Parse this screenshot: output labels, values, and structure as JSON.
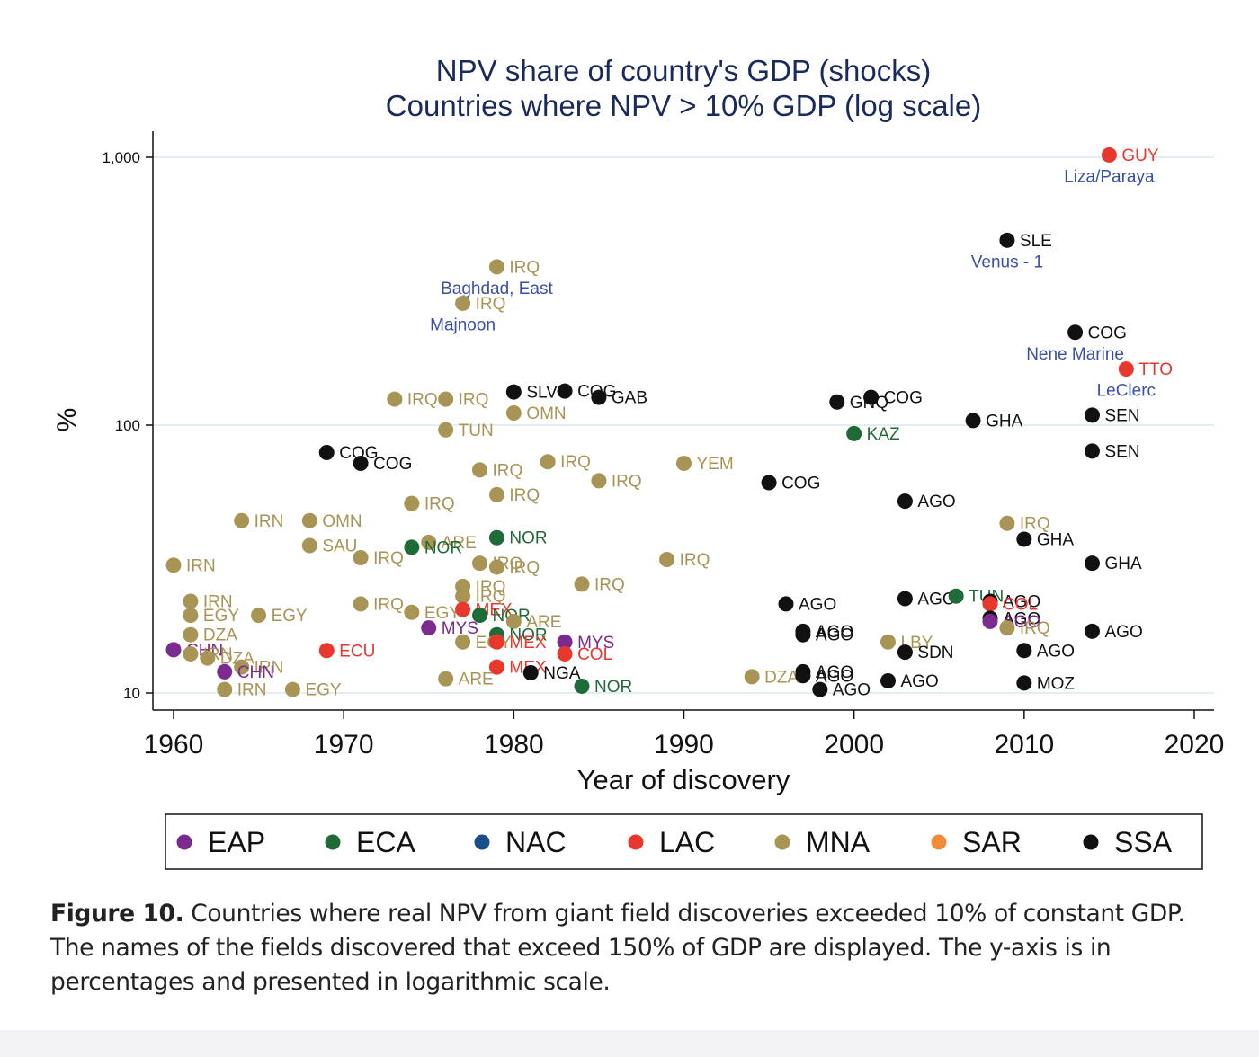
{
  "chart_data": {
    "type": "scatter",
    "title": "NPV share of country's GDP (shocks)",
    "subtitle": "Countries where NPV > 10% GDP (log scale)",
    "xlabel": "Year of discovery",
    "ylabel": "%",
    "xlim": [
      1959,
      2021
    ],
    "ylim": [
      9.1,
      1180
    ],
    "y_scale": "log",
    "x_ticks": [
      1960,
      1970,
      1980,
      1990,
      2000,
      2010,
      2020
    ],
    "y_ticks": [
      {
        "value": 10,
        "label": "10"
      },
      {
        "value": 100,
        "label": "100"
      },
      {
        "value": 1000,
        "label": "1,000"
      }
    ],
    "grid": "horizontal",
    "legend_position": "bottom",
    "groups": [
      {
        "key": "EAP",
        "name": "EAP",
        "color": "#7b2a8e"
      },
      {
        "key": "ECA",
        "name": "ECA",
        "color": "#1f6b37"
      },
      {
        "key": "NAC",
        "name": "NAC",
        "color": "#1b4f8a"
      },
      {
        "key": "LAC",
        "name": "LAC",
        "color": "#e8382e"
      },
      {
        "key": "MNA",
        "name": "MNA",
        "color": "#a89455"
      },
      {
        "key": "SAR",
        "name": "SAR",
        "color": "#f08c3a"
      },
      {
        "key": "SSA",
        "name": "SSA",
        "color": "#111111"
      }
    ],
    "field_label_color": "#3a4fa8",
    "points": [
      {
        "x": 2015,
        "y": 1020,
        "label": "GUY",
        "group": "LAC",
        "field": "Liza/Paraya"
      },
      {
        "x": 2009,
        "y": 490,
        "label": "SLE",
        "group": "SSA",
        "field": "Venus - 1"
      },
      {
        "x": 1979,
        "y": 390,
        "label": "IRQ",
        "group": "MNA",
        "field": "Baghdad, East"
      },
      {
        "x": 1977,
        "y": 285,
        "label": "IRQ",
        "group": "MNA",
        "field": "Majnoon"
      },
      {
        "x": 2013,
        "y": 222,
        "label": "COG",
        "group": "SSA",
        "field": "Nene Marine"
      },
      {
        "x": 2016,
        "y": 162,
        "label": "TTO",
        "group": "LAC",
        "field": "LeClerc"
      },
      {
        "x": 1980,
        "y": 133,
        "label": "SLV",
        "group": "SSA"
      },
      {
        "x": 1983,
        "y": 134,
        "label": "COG",
        "group": "SSA"
      },
      {
        "x": 1985,
        "y": 127,
        "label": "GAB",
        "group": "SSA"
      },
      {
        "x": 1973,
        "y": 125,
        "label": "IRQ",
        "group": "MNA"
      },
      {
        "x": 1976,
        "y": 125,
        "label": "IRQ",
        "group": "MNA"
      },
      {
        "x": 1980,
        "y": 111,
        "label": "OMN",
        "group": "MNA"
      },
      {
        "x": 1999,
        "y": 122,
        "label": "GNQ",
        "group": "SSA"
      },
      {
        "x": 2001,
        "y": 127,
        "label": "COG",
        "group": "SSA"
      },
      {
        "x": 2007,
        "y": 104,
        "label": "GHA",
        "group": "SSA"
      },
      {
        "x": 2014,
        "y": 109,
        "label": "SEN",
        "group": "SSA"
      },
      {
        "x": 1976,
        "y": 96,
        "label": "TUN",
        "group": "MNA"
      },
      {
        "x": 2000,
        "y": 93,
        "label": "KAZ",
        "group": "ECA"
      },
      {
        "x": 2014,
        "y": 80,
        "label": "SEN",
        "group": "SSA"
      },
      {
        "x": 1969,
        "y": 79,
        "label": "COG",
        "group": "SSA"
      },
      {
        "x": 1971,
        "y": 72,
        "label": "COG",
        "group": "SSA"
      },
      {
        "x": 1982,
        "y": 73,
        "label": "IRQ",
        "group": "MNA"
      },
      {
        "x": 1990,
        "y": 72,
        "label": "YEM",
        "group": "MNA"
      },
      {
        "x": 1978,
        "y": 68,
        "label": "IRQ",
        "group": "MNA"
      },
      {
        "x": 1985,
        "y": 62,
        "label": "IRQ",
        "group": "MNA"
      },
      {
        "x": 1995,
        "y": 61,
        "label": "COG",
        "group": "SSA"
      },
      {
        "x": 1979,
        "y": 55,
        "label": "IRQ",
        "group": "MNA"
      },
      {
        "x": 1974,
        "y": 51,
        "label": "IRQ",
        "group": "MNA"
      },
      {
        "x": 2003,
        "y": 52,
        "label": "AGO",
        "group": "SSA"
      },
      {
        "x": 1964,
        "y": 44,
        "label": "IRN",
        "group": "MNA"
      },
      {
        "x": 1968,
        "y": 44,
        "label": "OMN",
        "group": "MNA"
      },
      {
        "x": 2009,
        "y": 43,
        "label": "IRQ",
        "group": "MNA"
      },
      {
        "x": 1979,
        "y": 38,
        "label": "NOR",
        "group": "ECA"
      },
      {
        "x": 2010,
        "y": 37.5,
        "label": "GHA",
        "group": "SSA"
      },
      {
        "x": 1968,
        "y": 35.5,
        "label": "SAU",
        "group": "MNA"
      },
      {
        "x": 1975,
        "y": 36.5,
        "label": "ARE",
        "group": "MNA"
      },
      {
        "x": 1974,
        "y": 35,
        "label": "NOR",
        "group": "ECA"
      },
      {
        "x": 1971,
        "y": 32,
        "label": "IRQ",
        "group": "MNA"
      },
      {
        "x": 1960,
        "y": 30,
        "label": "IRN",
        "group": "MNA"
      },
      {
        "x": 1978,
        "y": 30.5,
        "label": "IRQ",
        "group": "MNA"
      },
      {
        "x": 1979,
        "y": 29.5,
        "label": "IRQ",
        "group": "MNA"
      },
      {
        "x": 1989,
        "y": 31.5,
        "label": "IRQ",
        "group": "MNA"
      },
      {
        "x": 2014,
        "y": 30.5,
        "label": "GHA",
        "group": "SSA"
      },
      {
        "x": 1977,
        "y": 25,
        "label": "IRQ",
        "group": "MNA"
      },
      {
        "x": 1984,
        "y": 25.5,
        "label": "IRQ",
        "group": "MNA"
      },
      {
        "x": 1977,
        "y": 23,
        "label": "IRQ",
        "group": "MNA"
      },
      {
        "x": 1961,
        "y": 22,
        "label": "IRN",
        "group": "MNA"
      },
      {
        "x": 1971,
        "y": 21.5,
        "label": "IRQ",
        "group": "MNA"
      },
      {
        "x": 1996,
        "y": 21.5,
        "label": "AGO",
        "group": "SSA"
      },
      {
        "x": 2003,
        "y": 22.5,
        "label": "AGO",
        "group": "SSA"
      },
      {
        "x": 2006,
        "y": 23,
        "label": "TUN",
        "group": "ECA"
      },
      {
        "x": 2008,
        "y": 22,
        "label": "AGO",
        "group": "SSA"
      },
      {
        "x": 2008,
        "y": 21.5,
        "label": "COL",
        "group": "LAC"
      },
      {
        "x": 1961,
        "y": 19.5,
        "label": "EGY",
        "group": "MNA"
      },
      {
        "x": 1965,
        "y": 19.5,
        "label": "EGY",
        "group": "MNA"
      },
      {
        "x": 1974,
        "y": 20,
        "label": "EGY",
        "group": "MNA"
      },
      {
        "x": 1977,
        "y": 20.5,
        "label": "MEX",
        "group": "LAC"
      },
      {
        "x": 1978,
        "y": 19.5,
        "label": "NOR",
        "group": "ECA"
      },
      {
        "x": 1980,
        "y": 18.5,
        "label": "ARE",
        "group": "MNA"
      },
      {
        "x": 2008,
        "y": 19,
        "label": "AGO",
        "group": "SSA"
      },
      {
        "x": 2008,
        "y": 18.5,
        "label": "AGO",
        "group": "EAP"
      },
      {
        "x": 1975,
        "y": 17.5,
        "label": "MYS",
        "group": "EAP"
      },
      {
        "x": 1979,
        "y": 16.5,
        "label": "NOR",
        "group": "ECA"
      },
      {
        "x": 2009,
        "y": 17.5,
        "label": "IRQ",
        "group": "MNA"
      },
      {
        "x": 1997,
        "y": 17,
        "label": "AGO",
        "group": "SSA"
      },
      {
        "x": 1997,
        "y": 16.5,
        "label": "AGO",
        "group": "SSA"
      },
      {
        "x": 2014,
        "y": 17,
        "label": "AGO",
        "group": "SSA"
      },
      {
        "x": 1961,
        "y": 16.5,
        "label": "DZA",
        "group": "MNA"
      },
      {
        "x": 1977,
        "y": 15.5,
        "label": "EGY",
        "group": "MNA"
      },
      {
        "x": 1979,
        "y": 15.5,
        "label": "MEX",
        "group": "LAC"
      },
      {
        "x": 1983,
        "y": 15.5,
        "label": "MYS",
        "group": "EAP"
      },
      {
        "x": 2002,
        "y": 15.5,
        "label": "LBY",
        "group": "MNA"
      },
      {
        "x": 1960,
        "y": 14.5,
        "label": "CHN",
        "group": "EAP"
      },
      {
        "x": 1969,
        "y": 14.4,
        "label": "ECU",
        "group": "LAC"
      },
      {
        "x": 1983,
        "y": 14,
        "label": "COL",
        "group": "LAC"
      },
      {
        "x": 2003,
        "y": 14.2,
        "label": "SDN",
        "group": "SSA"
      },
      {
        "x": 2010,
        "y": 14.4,
        "label": "AGO",
        "group": "SSA"
      },
      {
        "x": 1961,
        "y": 14,
        "label": "IRN",
        "group": "MNA"
      },
      {
        "x": 1962,
        "y": 13.5,
        "label": "DZA",
        "group": "MNA"
      },
      {
        "x": 1964,
        "y": 12.5,
        "label": "IRN",
        "group": "MNA"
      },
      {
        "x": 1963,
        "y": 12,
        "label": "CHN",
        "group": "EAP"
      },
      {
        "x": 1979,
        "y": 12.5,
        "label": "MEX",
        "group": "LAC"
      },
      {
        "x": 1981,
        "y": 11.9,
        "label": "NGA",
        "group": "SSA"
      },
      {
        "x": 1976,
        "y": 11.3,
        "label": "ARE",
        "group": "MNA"
      },
      {
        "x": 1994,
        "y": 11.5,
        "label": "DZA",
        "group": "MNA"
      },
      {
        "x": 1997,
        "y": 12,
        "label": "AGO",
        "group": "SSA"
      },
      {
        "x": 1997,
        "y": 11.6,
        "label": "AGO",
        "group": "SSA"
      },
      {
        "x": 2002,
        "y": 11.1,
        "label": "AGO",
        "group": "SSA"
      },
      {
        "x": 1963,
        "y": 10.3,
        "label": "IRN",
        "group": "MNA"
      },
      {
        "x": 1967,
        "y": 10.3,
        "label": "EGY",
        "group": "MNA"
      },
      {
        "x": 1984,
        "y": 10.6,
        "label": "NOR",
        "group": "ECA"
      },
      {
        "x": 1998,
        "y": 10.3,
        "label": "AGO",
        "group": "SSA"
      },
      {
        "x": 2010,
        "y": 10.9,
        "label": "MOZ",
        "group": "SSA"
      }
    ]
  },
  "caption": {
    "lead": "Figure 10.",
    "text": "Countries where real NPV from giant field discoveries exceeded 10% of constant GDP. The names of the fields discovered that exceed 150% of GDP are displayed. The y-axis is in percentages and presented in logarithmic scale."
  }
}
